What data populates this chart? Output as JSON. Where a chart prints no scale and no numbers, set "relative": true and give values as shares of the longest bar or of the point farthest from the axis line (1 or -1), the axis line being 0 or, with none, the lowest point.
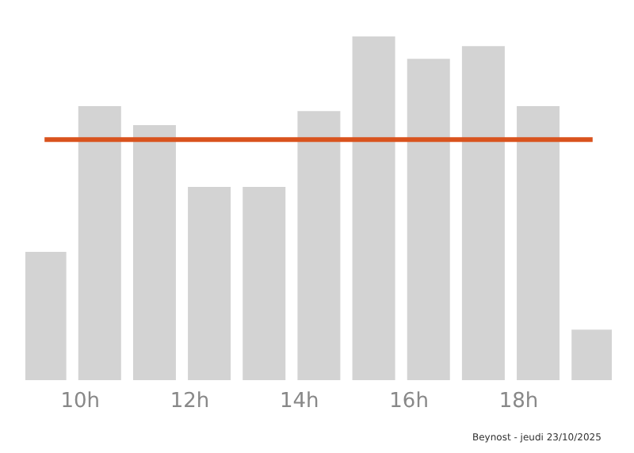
{
  "chart_data": {
    "type": "bar",
    "relative": true,
    "x": [
      9.35,
      10.35,
      11.35,
      12.35,
      13.35,
      14.35,
      15.35,
      16.35,
      17.35,
      18.35,
      19.35
    ],
    "values": [
      0.373,
      0.797,
      0.742,
      0.562,
      0.562,
      0.783,
      1,
      0.935,
      0.972,
      0.797,
      0.147
    ],
    "color": "#d3d3d3",
    "xlim": [
      9,
      19.7
    ],
    "xticks": [
      {
        "value": 10,
        "label": "10h"
      },
      {
        "value": 12,
        "label": "12h"
      },
      {
        "value": 14,
        "label": "14h"
      },
      {
        "value": 16,
        "label": "16h"
      },
      {
        "value": 18,
        "label": "18h"
      }
    ],
    "ref_lines": [
      {
        "axis": "y",
        "value": 0.7,
        "label": null,
        "color": "#d9531e"
      }
    ],
    "annotations": [
      "Beynost - jeudi 23/10/2025"
    ]
  }
}
